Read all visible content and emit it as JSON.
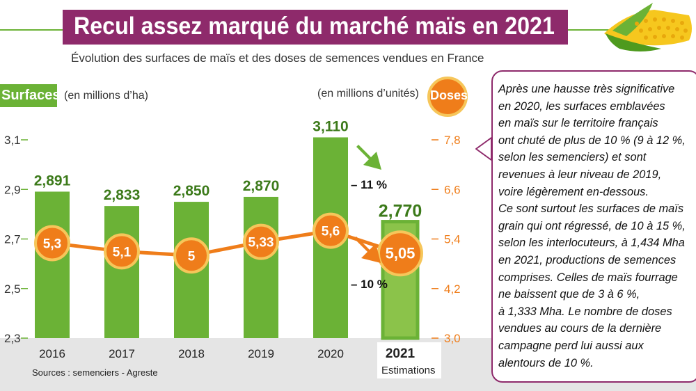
{
  "title": "Recul assez marqué du marché maïs en 2021",
  "subtitle": "Évolution des surfaces de maïs et des doses de semences vendues en France",
  "left_axis": {
    "badge": "Surfaces",
    "unit": "(en millions d’ha)"
  },
  "right_axis": {
    "badge": "Doses",
    "unit": "(en millions d’unités)"
  },
  "estimations_label": "Estimations",
  "sources": "Sources : semenciers - Agreste",
  "note": "Après une hausse très significative\nen 2020, les surfaces emblavées\nen maïs sur le territoire français\nont chuté de plus de 10 % (9 à 12 %,\nselon les semenciers) et sont\nrevenues à leur niveau de 2019,\nvoire légèrement en-dessous.\nCe sont surtout les surfaces de maïs\ngrain qui ont régressé, de 10 à 15 %,\nselon les interlocuteurs, à 1,434 Mha\nen 2021, productions de semences\ncomprises. Celles de maïs fourrage\nne baissent que de 3 à 6 %,\nà 1,333 Mha. Le nombre de doses\nvendues au cours de la dernière\ncampagne perd lui aussi aux\nalentours de 10 %.",
  "colors": {
    "accent": "#8e2a6b",
    "bar": "#6bb236",
    "bar_highlight": "#8bc34a",
    "line": "#ef7d1a",
    "circle_border": "#f6c65a"
  },
  "icons": [
    "corn-icon",
    "arrow-down-right-icon"
  ],
  "chart_data": {
    "type": "bar",
    "categories": [
      "2016",
      "2017",
      "2018",
      "2019",
      "2020",
      "2021"
    ],
    "series": [
      {
        "values": [
          2.891,
          2.833,
          2.85,
          2.87,
          3.11,
          2.77
        ],
        "labels": [
          "2,891",
          "2,833",
          "2,850",
          "2,870",
          "3,110",
          "2,770"
        ]
      },
      {
        "type": "line",
        "values": [
          5.3,
          5.1,
          5.0,
          5.33,
          5.6,
          5.05
        ],
        "labels": [
          "5,3",
          "5,1",
          "5",
          "5,33",
          "5,6",
          "5,05"
        ]
      }
    ],
    "ylim_left": [
      2.3,
      3.1
    ],
    "ylim_right": [
      3.0,
      7.8
    ],
    "yticks_left": [
      "2,3",
      "2,5",
      "2,7",
      "2,9",
      "3,1"
    ],
    "yticks_right": [
      "3,0",
      "4,2",
      "5,4",
      "6,6",
      "7,8"
    ],
    "annotations": [
      "– 11 %",
      "– 10 %"
    ],
    "grid": false
  }
}
